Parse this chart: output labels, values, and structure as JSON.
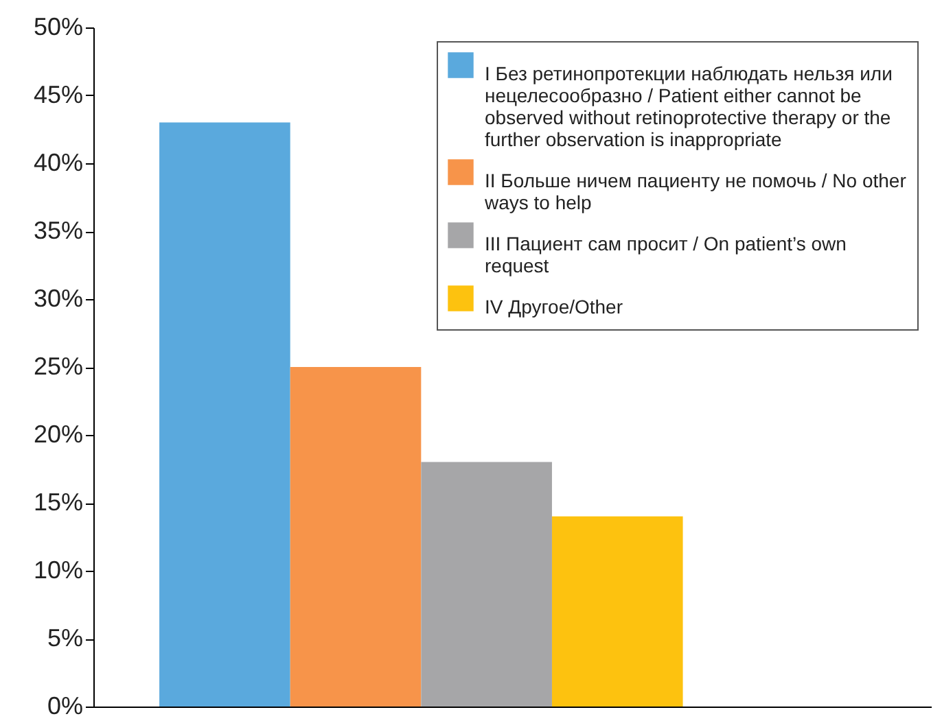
{
  "chart_data": {
    "type": "bar",
    "categories": [
      null
    ],
    "series": [
      {
        "name": "I Без ретинопротекции наблюдать нельзя или нецелесообразно / Patient either cannot be observed without retinoprotective therapy or the further observation is inappropriate",
        "color": "#5aa9dd",
        "values": [
          43
        ]
      },
      {
        "name": "II Больше ничем пациенту не помочь / No other ways to help",
        "color": "#f7944a",
        "values": [
          25
        ]
      },
      {
        "name": "III Пациент сам просит / On patient’s own request",
        "color": "#a6a6a8",
        "values": [
          18
        ]
      },
      {
        "name": "IV Другое/Other",
        "color": "#fdc20f",
        "values": [
          14
        ]
      }
    ],
    "ylim": [
      0,
      50
    ],
    "yticks": [
      {
        "value": 0,
        "label": "0%"
      },
      {
        "value": 5,
        "label": "5%"
      },
      {
        "value": 10,
        "label": "10%"
      },
      {
        "value": 15,
        "label": "15%"
      },
      {
        "value": 20,
        "label": "20%"
      },
      {
        "value": 25,
        "label": "25%"
      },
      {
        "value": 30,
        "label": "30%"
      },
      {
        "value": 35,
        "label": "35%"
      },
      {
        "value": 40,
        "label": "40%"
      },
      {
        "value": 45,
        "label": "45%"
      },
      {
        "value": 50,
        "label": "50%"
      }
    ],
    "grid": false,
    "legend": "top right"
  }
}
